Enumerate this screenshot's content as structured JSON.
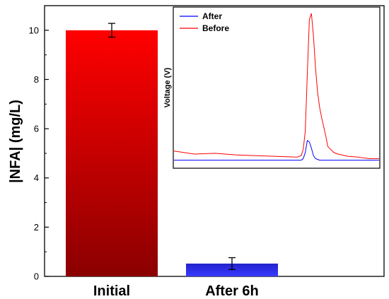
{
  "chart_data": [
    {
      "type": "bar",
      "categories": [
        "Initial",
        "After 6h"
      ],
      "values": [
        10.0,
        0.52
      ],
      "error": [
        0.28,
        0.24
      ],
      "ylabel": "|NFA| (mg/L)",
      "xlabel": "",
      "ylim": [
        0,
        11
      ],
      "yticks": [
        0,
        2,
        4,
        6,
        8,
        10
      ],
      "colors": [
        "#ff0000",
        "#0000ff"
      ],
      "gradient_dark": [
        "#8b0000",
        "#2222cc"
      ]
    },
    {
      "type": "line",
      "ylabel": "Voltage (V)",
      "legend_position": "top-left",
      "xlim": [
        0,
        100
      ],
      "ylim": [
        0,
        100
      ],
      "series": [
        {
          "name": "After",
          "color": "#0000ff",
          "x": [
            0,
            10,
            20,
            30,
            40,
            50,
            55,
            60,
            62,
            63,
            64,
            65,
            66,
            67,
            68,
            69,
            70,
            71,
            72,
            75,
            80,
            90,
            100
          ],
          "y": [
            3,
            3,
            3,
            3,
            3,
            3,
            3,
            3,
            3,
            4,
            8,
            16,
            15,
            11,
            6,
            4,
            3.5,
            3,
            3,
            3,
            3,
            3,
            3
          ]
        },
        {
          "name": "Before",
          "color": "#ff0000",
          "x": [
            0,
            10,
            20,
            30,
            40,
            50,
            60,
            62,
            63,
            64,
            65,
            66,
            67,
            68,
            69,
            70,
            71,
            72,
            73,
            74,
            75,
            78,
            80,
            85,
            90,
            95,
            100
          ],
          "y": [
            9,
            7,
            7.5,
            6.5,
            6,
            5.5,
            5,
            6,
            10,
            22,
            60,
            96,
            100,
            85,
            64,
            48,
            38,
            31,
            25,
            19,
            12,
            8,
            7,
            5.5,
            5,
            4,
            4
          ]
        }
      ]
    }
  ]
}
